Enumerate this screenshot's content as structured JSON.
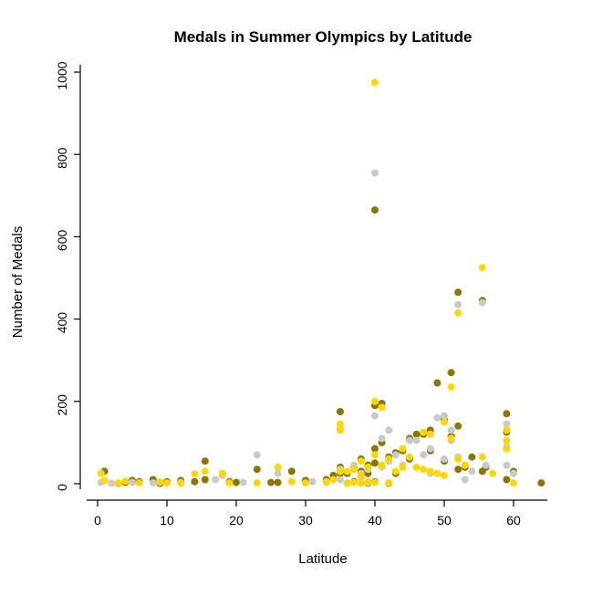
{
  "chart_data": {
    "type": "scatter",
    "title": "Medals in Summer Olympics by Latitude",
    "xlabel": "Latitude",
    "ylabel": "Number of Medals",
    "xlim": [
      -2.5,
      67.5
    ],
    "ylim": [
      -40,
      1020
    ],
    "x_ticks": [
      0,
      10,
      20,
      30,
      40,
      50,
      60
    ],
    "y_ticks": [
      0,
      200,
      400,
      600,
      800,
      1000
    ],
    "grid": false,
    "legend": "none",
    "point_radius": 4,
    "series": [
      {
        "name": "bronze",
        "color": "#8B7500",
        "points": [
          [
            1,
            30
          ],
          [
            3,
            1
          ],
          [
            4,
            3
          ],
          [
            5,
            8
          ],
          [
            6,
            5
          ],
          [
            8,
            10
          ],
          [
            9,
            1
          ],
          [
            10,
            5
          ],
          [
            12,
            8
          ],
          [
            14,
            5
          ],
          [
            15.5,
            55
          ],
          [
            15.5,
            10
          ],
          [
            18,
            25
          ],
          [
            19,
            5
          ],
          [
            20,
            3
          ],
          [
            23,
            35
          ],
          [
            25,
            3
          ],
          [
            26,
            3
          ],
          [
            28,
            30
          ],
          [
            30,
            8
          ],
          [
            33,
            10
          ],
          [
            34,
            20
          ],
          [
            35,
            175
          ],
          [
            35,
            40
          ],
          [
            35,
            25
          ],
          [
            36,
            25
          ],
          [
            37,
            40
          ],
          [
            37,
            5
          ],
          [
            38,
            60
          ],
          [
            38,
            30
          ],
          [
            39,
            45
          ],
          [
            39,
            25
          ],
          [
            39,
            1
          ],
          [
            40,
            665
          ],
          [
            40,
            190
          ],
          [
            40,
            85
          ],
          [
            40,
            50
          ],
          [
            40,
            5
          ],
          [
            41,
            195
          ],
          [
            41,
            100
          ],
          [
            42,
            65
          ],
          [
            42,
            1
          ],
          [
            43,
            75
          ],
          [
            43,
            25
          ],
          [
            44,
            80
          ],
          [
            45,
            110
          ],
          [
            45,
            60
          ],
          [
            46,
            120
          ],
          [
            47,
            120
          ],
          [
            48,
            130
          ],
          [
            48,
            80
          ],
          [
            49,
            245
          ],
          [
            50,
            155
          ],
          [
            50,
            55
          ],
          [
            51,
            270
          ],
          [
            51,
            115
          ],
          [
            52,
            465
          ],
          [
            52,
            140
          ],
          [
            52,
            35
          ],
          [
            53,
            40
          ],
          [
            54,
            65
          ],
          [
            55.5,
            445
          ],
          [
            55.5,
            30
          ],
          [
            56,
            40
          ],
          [
            59,
            170
          ],
          [
            59,
            125
          ],
          [
            59,
            10
          ],
          [
            60,
            30
          ],
          [
            64,
            2
          ]
        ]
      },
      {
        "name": "silver",
        "color": "#C9C9C9",
        "points": [
          [
            0.5,
            3
          ],
          [
            2,
            1
          ],
          [
            5,
            3
          ],
          [
            8,
            2
          ],
          [
            12,
            3
          ],
          [
            17,
            10
          ],
          [
            18,
            20
          ],
          [
            21,
            3
          ],
          [
            23,
            70
          ],
          [
            26,
            25
          ],
          [
            31,
            5
          ],
          [
            33,
            5
          ],
          [
            35,
            135
          ],
          [
            35,
            35
          ],
          [
            35,
            10
          ],
          [
            36,
            2
          ],
          [
            37,
            45
          ],
          [
            38,
            25
          ],
          [
            38,
            15
          ],
          [
            39,
            35
          ],
          [
            39,
            2
          ],
          [
            40,
            755
          ],
          [
            40,
            165
          ],
          [
            40,
            3
          ],
          [
            41,
            110
          ],
          [
            41,
            40
          ],
          [
            42,
            130
          ],
          [
            42,
            55
          ],
          [
            43,
            70
          ],
          [
            44,
            45
          ],
          [
            45,
            105
          ],
          [
            46,
            105
          ],
          [
            47,
            70
          ],
          [
            48,
            85
          ],
          [
            48,
            25
          ],
          [
            49,
            160
          ],
          [
            50,
            165
          ],
          [
            50,
            60
          ],
          [
            51,
            130
          ],
          [
            51,
            105
          ],
          [
            52,
            435
          ],
          [
            52,
            65
          ],
          [
            53,
            10
          ],
          [
            54,
            30
          ],
          [
            55.5,
            440
          ],
          [
            56,
            45
          ],
          [
            59,
            145
          ],
          [
            59,
            90
          ],
          [
            59,
            45
          ],
          [
            60,
            25
          ]
        ]
      },
      {
        "name": "gold",
        "color": "#FFD700",
        "points": [
          [
            0.5,
            25
          ],
          [
            1,
            8
          ],
          [
            3,
            2
          ],
          [
            4,
            6
          ],
          [
            6,
            2
          ],
          [
            9,
            4
          ],
          [
            10,
            2
          ],
          [
            12,
            1
          ],
          [
            14,
            24
          ],
          [
            15.5,
            30
          ],
          [
            18,
            25
          ],
          [
            19,
            2
          ],
          [
            23,
            2
          ],
          [
            26,
            40
          ],
          [
            28,
            5
          ],
          [
            30,
            2
          ],
          [
            33,
            3
          ],
          [
            34,
            10
          ],
          [
            35,
            145
          ],
          [
            35,
            130
          ],
          [
            35,
            30
          ],
          [
            36,
            30
          ],
          [
            36,
            1
          ],
          [
            37,
            35
          ],
          [
            37,
            3
          ],
          [
            38,
            55
          ],
          [
            38,
            20
          ],
          [
            38,
            1
          ],
          [
            39,
            40
          ],
          [
            39,
            5
          ],
          [
            40,
            975
          ],
          [
            40,
            200
          ],
          [
            40,
            70
          ],
          [
            40,
            3
          ],
          [
            41,
            185
          ],
          [
            41,
            45
          ],
          [
            42,
            60
          ],
          [
            42,
            2
          ],
          [
            43,
            30
          ],
          [
            44,
            85
          ],
          [
            44,
            40
          ],
          [
            45,
            65
          ],
          [
            46,
            40
          ],
          [
            47,
            125
          ],
          [
            47,
            35
          ],
          [
            48,
            120
          ],
          [
            48,
            30
          ],
          [
            49,
            25
          ],
          [
            50,
            150
          ],
          [
            50,
            20
          ],
          [
            51,
            235
          ],
          [
            51,
            110
          ],
          [
            52,
            415
          ],
          [
            52,
            60
          ],
          [
            53,
            45
          ],
          [
            55.5,
            525
          ],
          [
            55.5,
            65
          ],
          [
            57,
            25
          ],
          [
            59,
            130
          ],
          [
            59,
            105
          ],
          [
            59,
            85
          ],
          [
            60,
            2
          ]
        ]
      }
    ]
  }
}
